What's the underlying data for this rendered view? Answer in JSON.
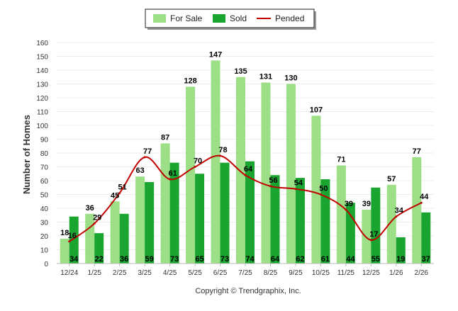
{
  "chart_data": {
    "type": "bar",
    "title": "",
    "xlabel": "",
    "ylabel": "Number of Homes",
    "ylim": [
      0,
      160
    ],
    "y_ticks": [
      0,
      10,
      20,
      30,
      40,
      50,
      60,
      70,
      80,
      90,
      100,
      110,
      120,
      130,
      140,
      150,
      160
    ],
    "grid": true,
    "legend_position": "top-center",
    "categories": [
      "12/24",
      "1/25",
      "2/25",
      "3/25",
      "4/25",
      "5/25",
      "6/25",
      "7/25",
      "8/25",
      "9/25",
      "10/25",
      "11/25",
      "12/25",
      "1/26",
      "2/26"
    ],
    "series": [
      {
        "name": "For Sale",
        "kind": "bar",
        "color": "#9ddf86",
        "values": [
          18,
          36,
          45,
          63,
          87,
          128,
          147,
          135,
          131,
          130,
          107,
          71,
          39,
          57,
          77
        ]
      },
      {
        "name": "Sold",
        "kind": "bar",
        "color": "#19a52f",
        "values": [
          34,
          22,
          36,
          59,
          73,
          65,
          73,
          74,
          64,
          62,
          61,
          44,
          55,
          19,
          37
        ]
      },
      {
        "name": "Pended",
        "kind": "line",
        "color": "#c00000",
        "values": [
          16,
          29,
          51,
          77,
          61,
          70,
          78,
          64,
          56,
          54,
          50,
          39,
          17,
          34,
          44
        ]
      }
    ],
    "copyright": "Copyright © Trendgraphix, Inc."
  }
}
